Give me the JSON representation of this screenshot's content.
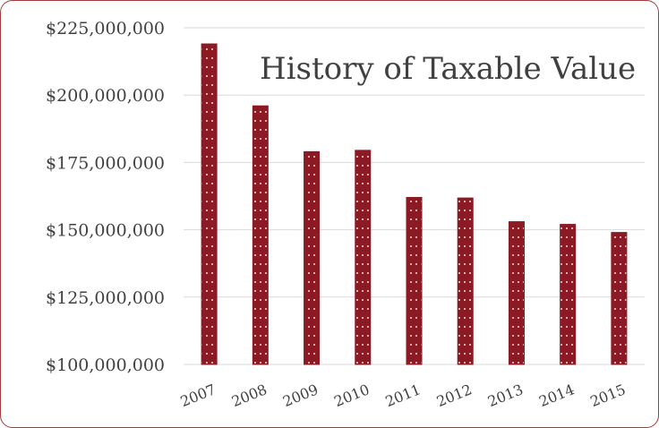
{
  "chart_data": {
    "type": "bar",
    "title": "History of Taxable Value",
    "xlabel": "",
    "ylabel": "",
    "categories": [
      "2007",
      "2008",
      "2009",
      "2010",
      "2011",
      "2012",
      "2013",
      "2014",
      "2015"
    ],
    "values": [
      219000000,
      196000000,
      179000000,
      179500000,
      162000000,
      161800000,
      153000000,
      152000000,
      149000000
    ],
    "ylim": [
      100000000,
      225000000
    ],
    "yticks": [
      100000000,
      125000000,
      150000000,
      175000000,
      200000000,
      225000000
    ],
    "ytick_labels": [
      "$100,000,000",
      "$125,000,000",
      "$150,000,000",
      "$175,000,000",
      "$200,000,000",
      "$225,000,000"
    ],
    "grid": "horizontal",
    "legend": "none",
    "bar_color": "#8b1a24",
    "bar_pattern": "white dotted"
  }
}
